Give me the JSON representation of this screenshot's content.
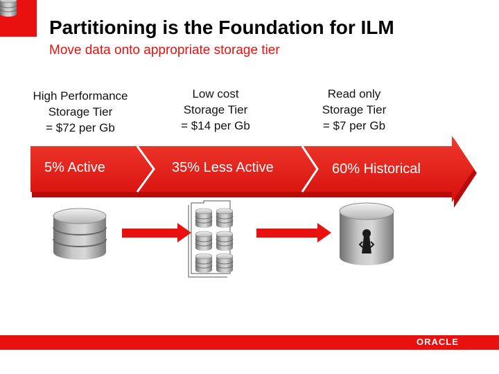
{
  "slide": {
    "title": "Partitioning is the Foundation for ILM",
    "subtitle": "Move data onto appropriate storage tier"
  },
  "tiers": [
    {
      "lines": [
        "High Performance",
        "Storage Tier",
        "= $72 per Gb"
      ]
    },
    {
      "lines": [
        "Low cost",
        "Storage Tier",
        "= $14 per Gb"
      ]
    },
    {
      "lines": [
        "Read only",
        "Storage Tier",
        "= $7 per Gb"
      ]
    }
  ],
  "arrow_segments": [
    {
      "label": "5% Active"
    },
    {
      "label": "35% Less Active"
    },
    {
      "label": "60% Historical"
    }
  ],
  "icons": {
    "tier1": "database-icon",
    "tier2": "partitioned-database-icon",
    "tier3": "locked-database-icon",
    "flow": "right-arrow-icon"
  },
  "footer": {
    "logo": "ORACLE"
  },
  "colors": {
    "accent": "#e8110f",
    "arrow_dark": "#c20d0c",
    "gray": "#8c8c8c"
  }
}
